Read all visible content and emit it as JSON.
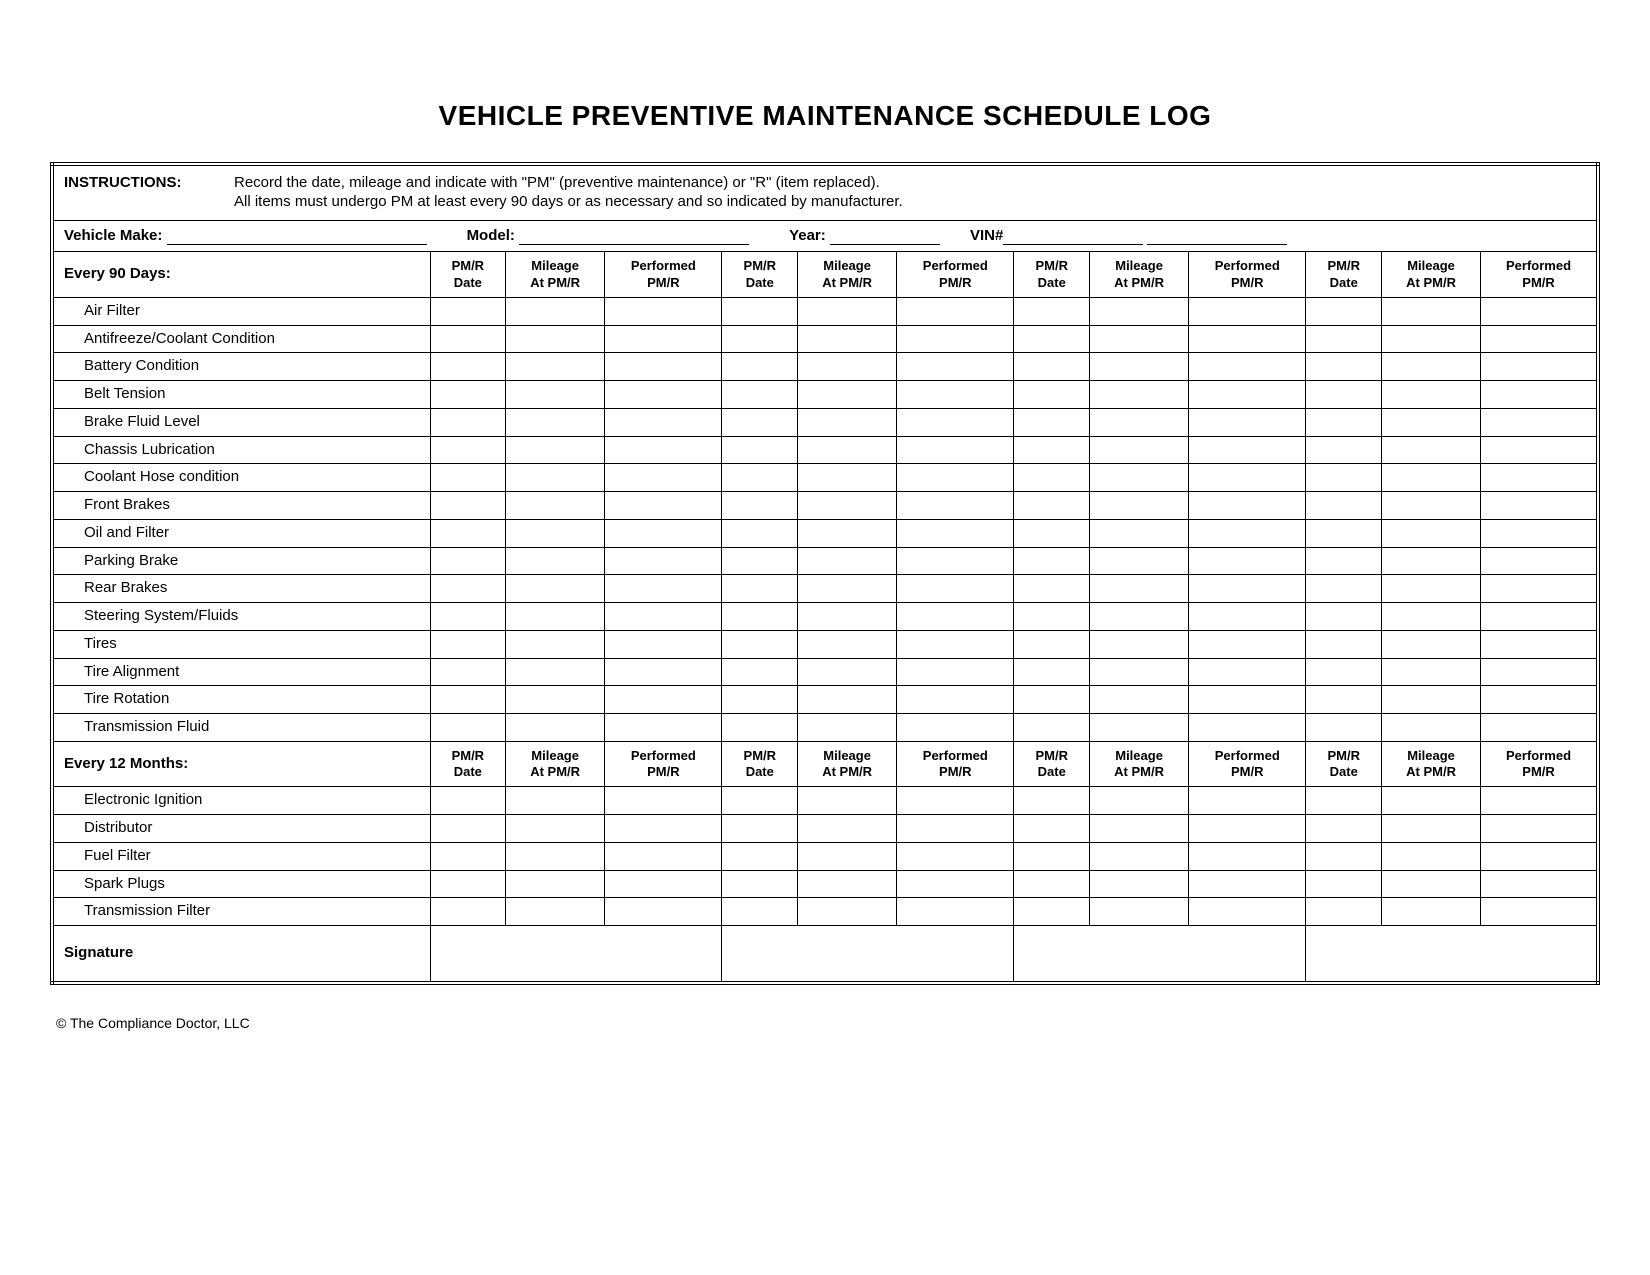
{
  "title": "VEHICLE PREVENTIVE MAINTENANCE SCHEDULE LOG",
  "instructions": {
    "label": "INSTRUCTIONS:",
    "line1": "Record the date, mileage and indicate with \"PM\" (preventive maintenance) or \"R\" (item replaced).",
    "line2": "All items must undergo PM at least every 90 days or as necessary and so indicated by manufacturer."
  },
  "info": {
    "make_label": "Vehicle Make:",
    "model_label": "Model:",
    "year_label": "Year:",
    "vin_label": "VIN#"
  },
  "column_headers": {
    "date": "PM/R\nDate",
    "mileage": "Mileage\nAt PM/R",
    "performed": "Performed\nPM/R"
  },
  "section90": {
    "heading": "Every 90 Days:",
    "items": [
      "Air Filter",
      "Antifreeze/Coolant Condition",
      "Battery Condition",
      "Belt Tension",
      "Brake Fluid Level",
      "Chassis Lubrication",
      "Coolant Hose condition",
      "Front Brakes",
      "Oil and Filter",
      "Parking Brake",
      "Rear Brakes",
      "Steering System/Fluids",
      "Tires",
      "Tire Alignment",
      "Tire Rotation",
      "Transmission Fluid"
    ]
  },
  "section12": {
    "heading": "Every 12 Months:",
    "items": [
      "Electronic Ignition",
      "Distributor",
      "Fuel Filter",
      "Spark Plugs",
      "Transmission Filter"
    ]
  },
  "signature_label": "Signature",
  "footer": "© The Compliance Doctor, LLC",
  "colors": {
    "border": "#000000",
    "background": "#ffffff",
    "text": "#000000"
  }
}
